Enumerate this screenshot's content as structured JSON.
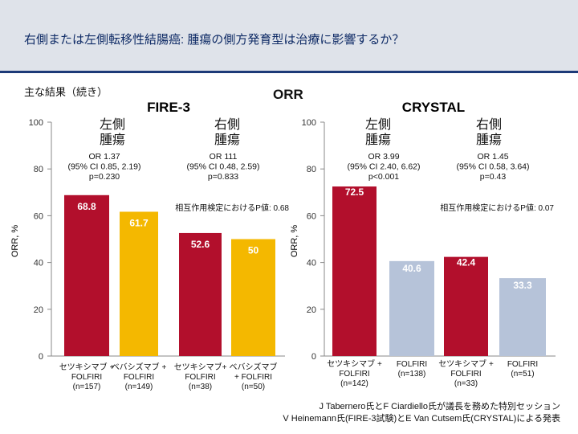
{
  "header": {
    "title": "右側または左側転移性結腸癌: 腫瘍の側方発育型は治療に影響するか？",
    "subtitle": "主な結果（続き）",
    "orr_title": "ORR"
  },
  "footnotes": {
    "line1": "J Tabernero氏とF Ciardiello氏が議長を務めた特別セッション",
    "line2": "V Heinemann氏(FIRE-3試験)とE Van Cutsem氏(CRYSTAL)による発表"
  },
  "colors": {
    "cetuximab": "#b20f2c",
    "bevacizumab": "#f4b800",
    "cetuximab_crystal": "#b20f2c",
    "folfiri_crystal": "#b6c3d9",
    "header_bg": "#dfe3ea",
    "header_rule": "#1d3a78"
  },
  "chart_data": [
    {
      "type": "bar",
      "title": "FIRE-3",
      "ylabel": "ORR, %",
      "ylim": [
        0,
        100
      ],
      "yticks": [
        0,
        20,
        40,
        60,
        80,
        100
      ],
      "groups": [
        {
          "name": "左側\n腫瘍",
          "stats": [
            "OR 1.37",
            "(95% CI 0.85, 2.19)",
            "p=0.230"
          ]
        },
        {
          "name": "右側\n腫瘍",
          "stats": [
            "OR 111",
            "(95% CI 0.48, 2.59)",
            "p=0.833"
          ]
        }
      ],
      "interaction": "相互作用検定におけるP値: 0.68",
      "categories": [
        "セツキシマブ +\nFOLFIRI\n(n=157)",
        "ベバシズマブ +\nFOLFIRI\n(n=149)",
        "セツキシマブ+\nFOLFIRI\n(n=38)",
        "ベバシズマブ\n+ FOLFIRI\n(n=50)"
      ],
      "values": [
        68.8,
        61.7,
        52.6,
        50
      ],
      "value_labels": [
        "68.8",
        "61.7",
        "52.6",
        "50"
      ],
      "bar_colors": [
        "#b20f2c",
        "#f4b800",
        "#b20f2c",
        "#f4b800"
      ],
      "label_colors": [
        "#ffffff",
        "#ffffff",
        "#ffffff",
        "#ffffff"
      ]
    },
    {
      "type": "bar",
      "title": "CRYSTAL",
      "ylabel": "ORR, %",
      "ylim": [
        0,
        100
      ],
      "yticks": [
        0,
        20,
        40,
        60,
        80,
        100
      ],
      "groups": [
        {
          "name": "左側\n腫瘍",
          "stats": [
            "OR 3.99",
            "(95% CI 2.40, 6.62)",
            "p<0.001"
          ]
        },
        {
          "name": "右側\n腫瘍",
          "stats": [
            "OR 1.45",
            "(95% CI 0.58, 3.64)",
            "p=0.43"
          ]
        }
      ],
      "interaction": "相互作用検定におけるP値: 0.07",
      "categories": [
        "セツキシマブ +\nFOLFIRI\n(n=142)",
        "FOLFIRI\n(n=138)",
        "セツキシマブ +\nFOLFIRI\n(n=33)",
        "FOLFIRI\n(n=51)"
      ],
      "values": [
        72.5,
        40.6,
        42.4,
        33.3
      ],
      "value_labels": [
        "72.5",
        "40.6",
        "42.4",
        "33.3"
      ],
      "bar_colors": [
        "#b20f2c",
        "#b6c3d9",
        "#b20f2c",
        "#b6c3d9"
      ],
      "label_colors": [
        "#ffffff",
        "#ffffff",
        "#ffffff",
        "#ffffff"
      ]
    }
  ]
}
